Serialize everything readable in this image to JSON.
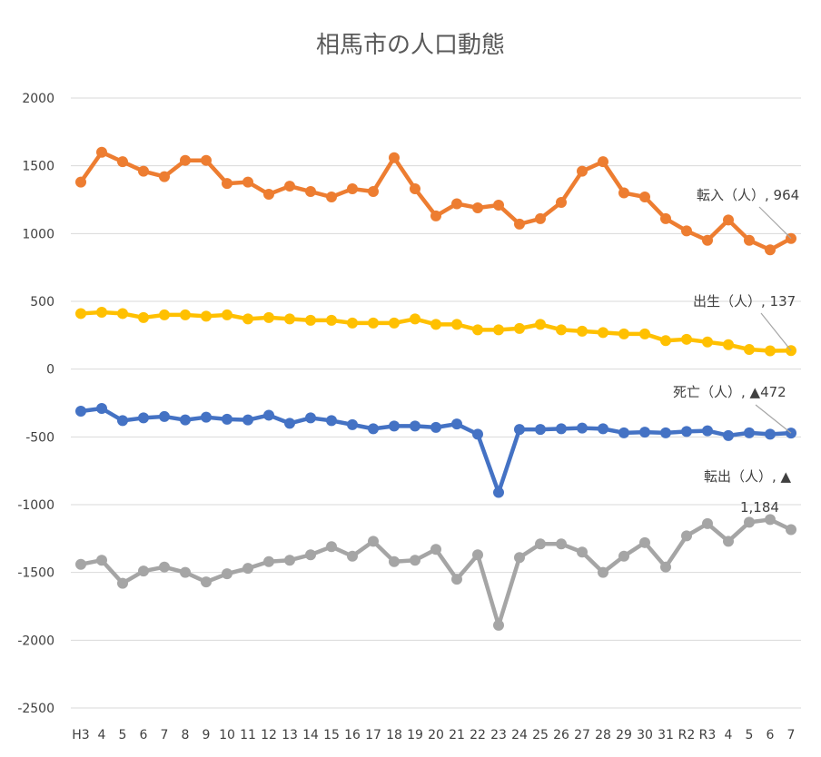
{
  "chart_data": {
    "type": "line",
    "title": "相馬市の人口動態",
    "xlabel": "",
    "ylabel": "",
    "categories": [
      "H3",
      "4",
      "5",
      "6",
      "7",
      "8",
      "9",
      "10",
      "11",
      "12",
      "13",
      "14",
      "15",
      "16",
      "17",
      "18",
      "19",
      "20",
      "21",
      "22",
      "23",
      "24",
      "25",
      "26",
      "27",
      "28",
      "29",
      "30",
      "31",
      "R2",
      "R3",
      "4",
      "5",
      "6",
      "7"
    ],
    "ylim": [
      -2500,
      2000
    ],
    "yticks": [
      "2000",
      "1500",
      "1000",
      "500",
      "0",
      "-500",
      "-1000",
      "-1500",
      "-2000",
      "-2500"
    ],
    "grid": true,
    "legend": "none",
    "series": [
      {
        "key": "tennyu",
        "color": "#ED7D31",
        "values": [
          1380,
          1600,
          1530,
          1460,
          1420,
          1540,
          1540,
          1370,
          1380,
          1290,
          1350,
          1310,
          1270,
          1330,
          1310,
          1560,
          1330,
          1130,
          1220,
          1190,
          1210,
          1070,
          1110,
          1230,
          1460,
          1530,
          1300,
          1270,
          1110,
          1020,
          950,
          1100,
          950,
          880,
          964
        ]
      },
      {
        "key": "shussei",
        "color": "#FFC000",
        "values": [
          410,
          420,
          410,
          380,
          400,
          400,
          390,
          400,
          370,
          380,
          370,
          360,
          360,
          340,
          340,
          340,
          370,
          330,
          330,
          290,
          290,
          300,
          330,
          290,
          280,
          270,
          260,
          260,
          210,
          220,
          200,
          180,
          145,
          135,
          137
        ]
      },
      {
        "key": "shibo",
        "color": "#4472C4",
        "values": [
          -310,
          -290,
          -380,
          -360,
          -350,
          -375,
          -355,
          -370,
          -375,
          -340,
          -400,
          -360,
          -380,
          -410,
          -440,
          -420,
          -420,
          -430,
          -405,
          -480,
          -910,
          -445,
          -445,
          -440,
          -435,
          -440,
          -470,
          -465,
          -470,
          -460,
          -455,
          -490,
          -470,
          -480,
          -472
        ]
      },
      {
        "key": "tenshutsu",
        "color": "#A5A5A5",
        "values": [
          -1440,
          -1410,
          -1580,
          -1490,
          -1460,
          -1500,
          -1570,
          -1510,
          -1470,
          -1420,
          -1410,
          -1370,
          -1310,
          -1380,
          -1270,
          -1420,
          -1410,
          -1330,
          -1550,
          -1370,
          -1890,
          -1390,
          -1290,
          -1290,
          -1350,
          -1500,
          -1380,
          -1280,
          -1460,
          -1230,
          -1140,
          -1270,
          -1130,
          -1110,
          -1184
        ]
      }
    ],
    "annotations": {
      "tennyu": "転入（人）, 964",
      "shussei": "出生（人）, 137",
      "shibo": "死亡（人）, ▲472",
      "tenshutsu_line1": "転出（人）, ▲",
      "tenshutsu_line2": "1,184"
    }
  }
}
